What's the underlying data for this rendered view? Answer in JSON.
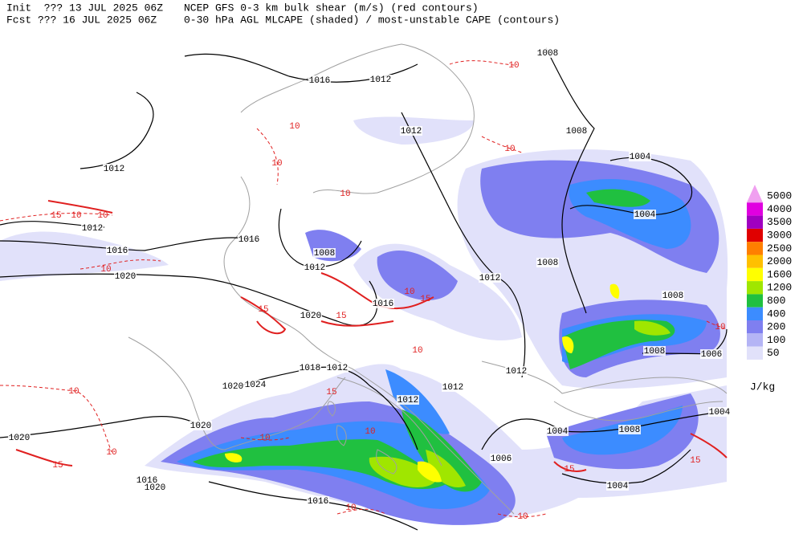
{
  "header": {
    "line1_left": "Init  ??? 13 JUL 2025 06Z",
    "line1_right": "NCEP GFS 0-3 km bulk shear (m/s) (red contours)",
    "line2_left": "Fcst ??? 16 JUL 2025 06Z",
    "line2_right": "0-30 hPa AGL MLCAPE (shaded) / most-unstable CAPE (contours)"
  },
  "legend": {
    "levels": [
      "5000",
      "4000",
      "3500",
      "3000",
      "2500",
      "2000",
      "1600",
      "1200",
      "800",
      "400",
      "200",
      "100",
      "50"
    ],
    "colors": [
      "#f0a0f0",
      "#e000e0",
      "#a000c0",
      "#e00000",
      "#ff7f00",
      "#ffc000",
      "#ffff00",
      "#a0e600",
      "#20c040",
      "#3c8cff",
      "#7f7ff0",
      "#b4b4f5",
      "#e1e1fa"
    ],
    "unit": "J/kg"
  },
  "isobar_labels": [
    "1016",
    "1012",
    "1008",
    "1012",
    "1012",
    "1008",
    "1004",
    "1004",
    "1012",
    "1016",
    "1016",
    "1008",
    "1012",
    "1020",
    "1008",
    "1012",
    "1016",
    "1020",
    "1008",
    "1008",
    "1006",
    "1018",
    "1012",
    "1012",
    "1024",
    "1020",
    "1012",
    "1012",
    "1020",
    "1020",
    "1004",
    "1008",
    "1004",
    "1006",
    "1016",
    "1020",
    "1004",
    "1016"
  ],
  "shear_labels": [
    "15",
    "10",
    "10",
    "15",
    "15",
    "15",
    "10",
    "10",
    "10",
    "10",
    "10",
    "10",
    "10",
    "10",
    "15",
    "10",
    "10",
    "10",
    "10",
    "10",
    "15",
    "10",
    "15",
    "15",
    "10"
  ]
}
